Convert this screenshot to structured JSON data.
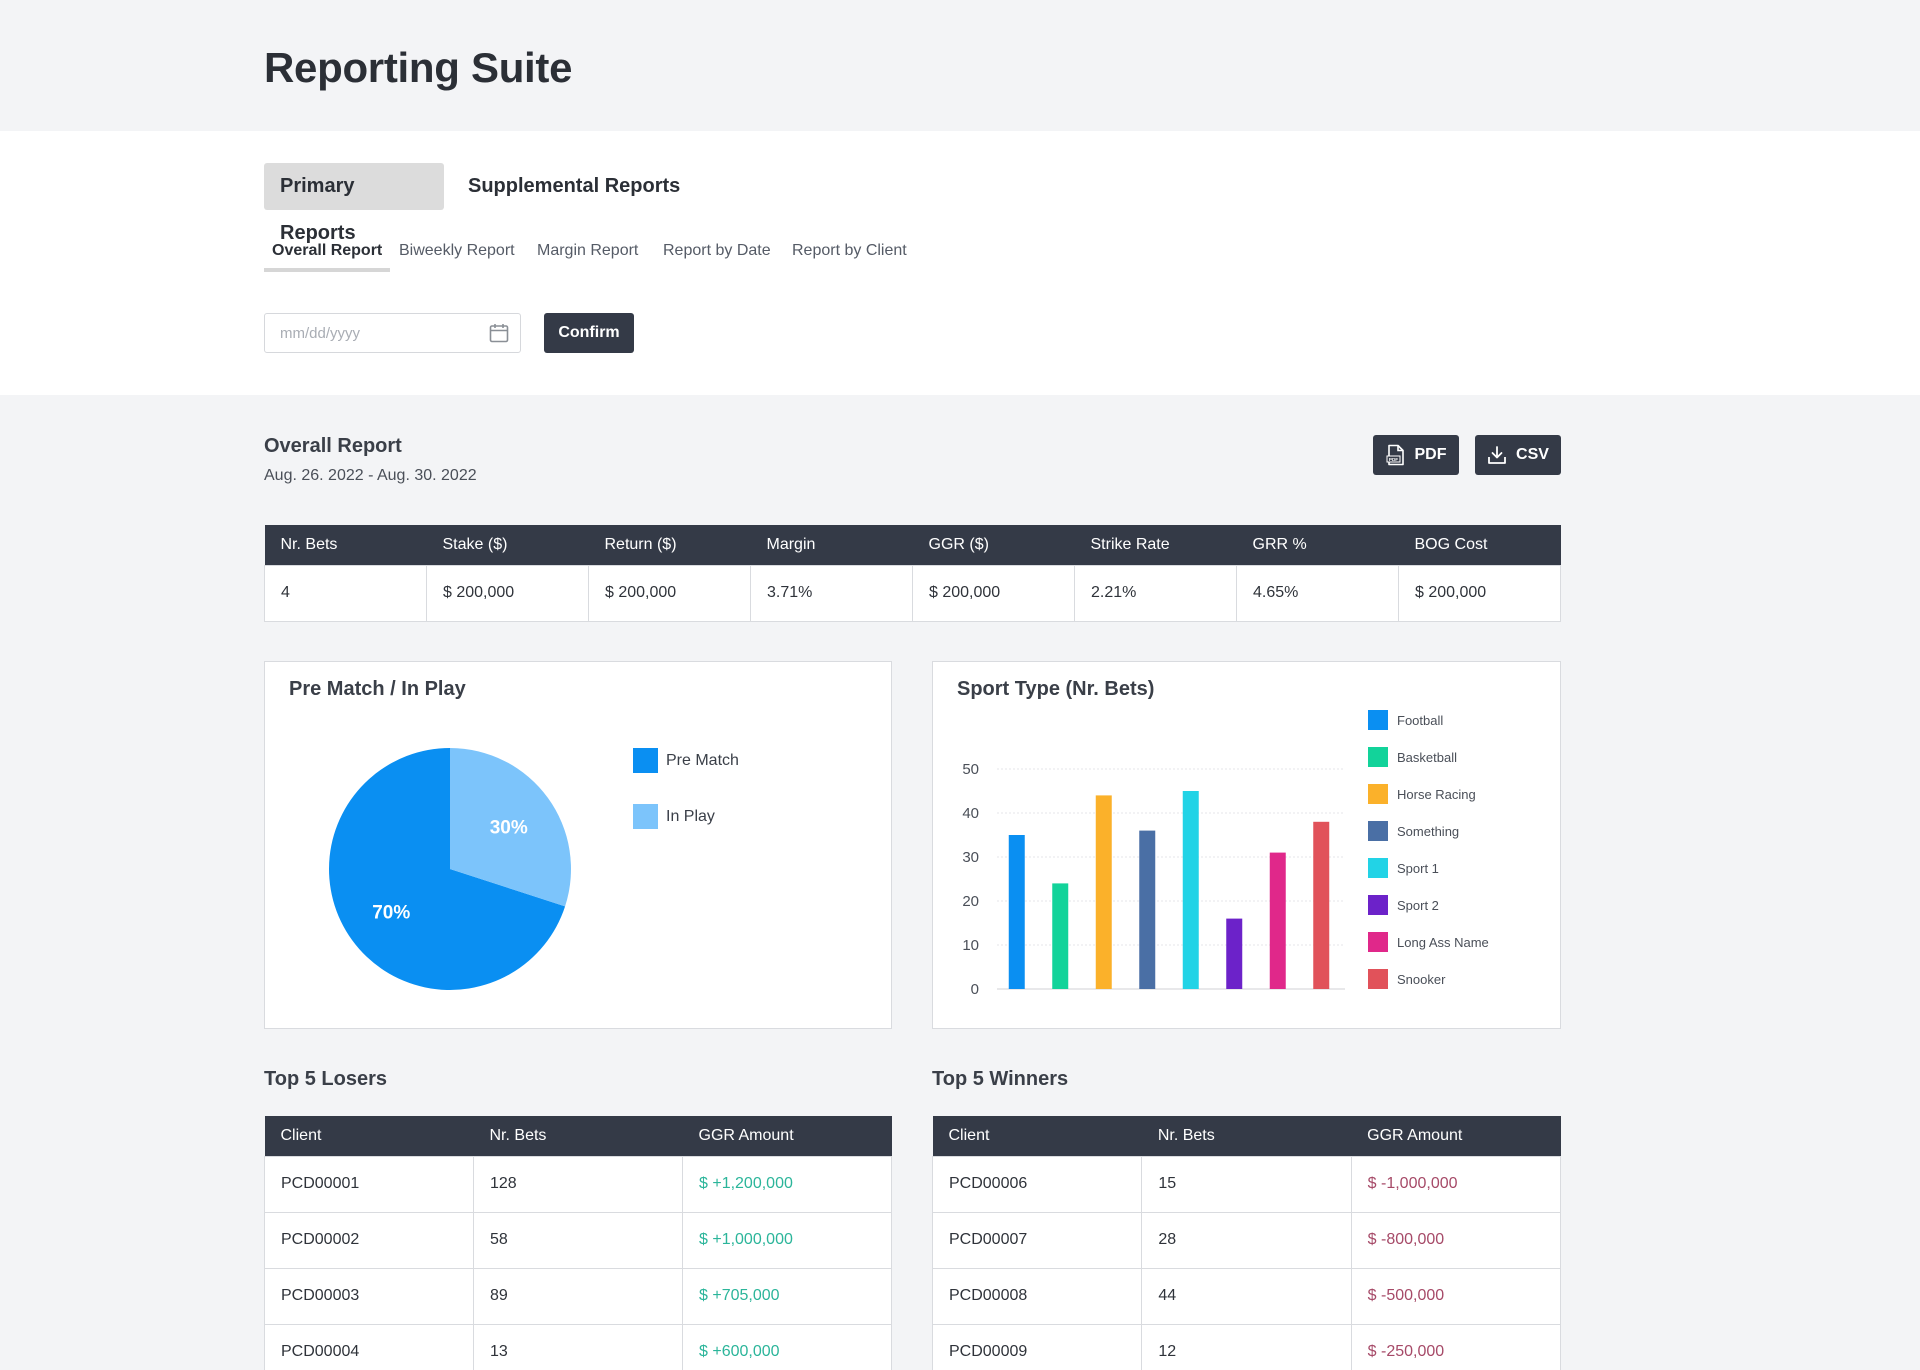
{
  "app": {
    "title": "Reporting Suite"
  },
  "main_tabs": [
    {
      "label": "Primary Reports",
      "active": true
    },
    {
      "label": "Supplemental Reports",
      "active": false
    }
  ],
  "sub_tabs": [
    {
      "label": "Overall Report",
      "active": true
    },
    {
      "label": "Biweekly Report",
      "active": false
    },
    {
      "label": "Margin Report",
      "active": false
    },
    {
      "label": "Report by Date",
      "active": false
    },
    {
      "label": "Report by Client",
      "active": false
    }
  ],
  "date_filter": {
    "placeholder": "mm/dd/yyyy",
    "icon": "calendar-icon",
    "confirm_label": "Confirm"
  },
  "report": {
    "title": "Overall Report",
    "range": "Aug. 26. 2022 - Aug. 30. 2022",
    "export": {
      "pdf_label": "PDF",
      "pdf_icon": "pdf-file-icon",
      "csv_label": "CSV",
      "csv_icon": "download-icon"
    }
  },
  "summary": {
    "headers": [
      "Nr. Bets",
      "Stake ($)",
      "Return ($)",
      "Margin",
      "GGR ($)",
      "Strike Rate",
      "GRR %",
      "BOG Cost"
    ],
    "values": [
      "4",
      "$ 200,000",
      "$ 200,000",
      "3.71%",
      "$ 200,000",
      "2.21%",
      "4.65%",
      "$ 200,000"
    ]
  },
  "pie": {
    "title": "Pre Match / In Play",
    "chart_data": {
      "type": "pie",
      "slices": [
        {
          "name": "Pre Match",
          "value": 70,
          "label": "70%",
          "color": "#0a8ff2"
        },
        {
          "name": "In Play",
          "value": 30,
          "label": "30%",
          "color": "#7cc4fb"
        }
      ]
    }
  },
  "bar": {
    "title": "Sport Type (Nr. Bets)",
    "chart_data": {
      "type": "bar",
      "ylim": [
        0,
        50
      ],
      "yticks": [
        "50",
        "40",
        "30",
        "20",
        "10",
        "0"
      ],
      "grid": true,
      "legend_position": "right",
      "series": [
        {
          "name": "Football",
          "value": 35,
          "color": "#0a8ff2"
        },
        {
          "name": "Basketball",
          "value": 24,
          "color": "#12d39a"
        },
        {
          "name": "Horse Racing",
          "value": 44,
          "color": "#fbb12a"
        },
        {
          "name": "Something",
          "value": 36,
          "color": "#4a6fa5"
        },
        {
          "name": "Sport 1",
          "value": 45,
          "color": "#22d3e6"
        },
        {
          "name": "Sport 2",
          "value": 16,
          "color": "#6c22c9"
        },
        {
          "name": "Long Ass Name",
          "value": 31,
          "color": "#e0288a"
        },
        {
          "name": "Snooker",
          "value": 38,
          "color": "#e1525a"
        }
      ]
    }
  },
  "losers": {
    "title": "Top 5 Losers",
    "headers": [
      "Client",
      "Nr. Bets",
      "GGR Amount"
    ],
    "rows": [
      [
        "PCD00001",
        "128",
        "$ +1,200,000"
      ],
      [
        "PCD00002",
        "58",
        "$ +1,000,000"
      ],
      [
        "PCD00003",
        "89",
        "$ +705,000"
      ],
      [
        "PCD00004",
        "13",
        "$ +600,000"
      ]
    ]
  },
  "winners": {
    "title": "Top 5 Winners",
    "headers": [
      "Client",
      "Nr. Bets",
      "GGR Amount"
    ],
    "rows": [
      [
        "PCD00006",
        "15",
        "$ -1,000,000"
      ],
      [
        "PCD00007",
        "28",
        "$ -800,000"
      ],
      [
        "PCD00008",
        "44",
        "$ -500,000"
      ],
      [
        "PCD00009",
        "12",
        "$ -250,000"
      ]
    ]
  }
}
